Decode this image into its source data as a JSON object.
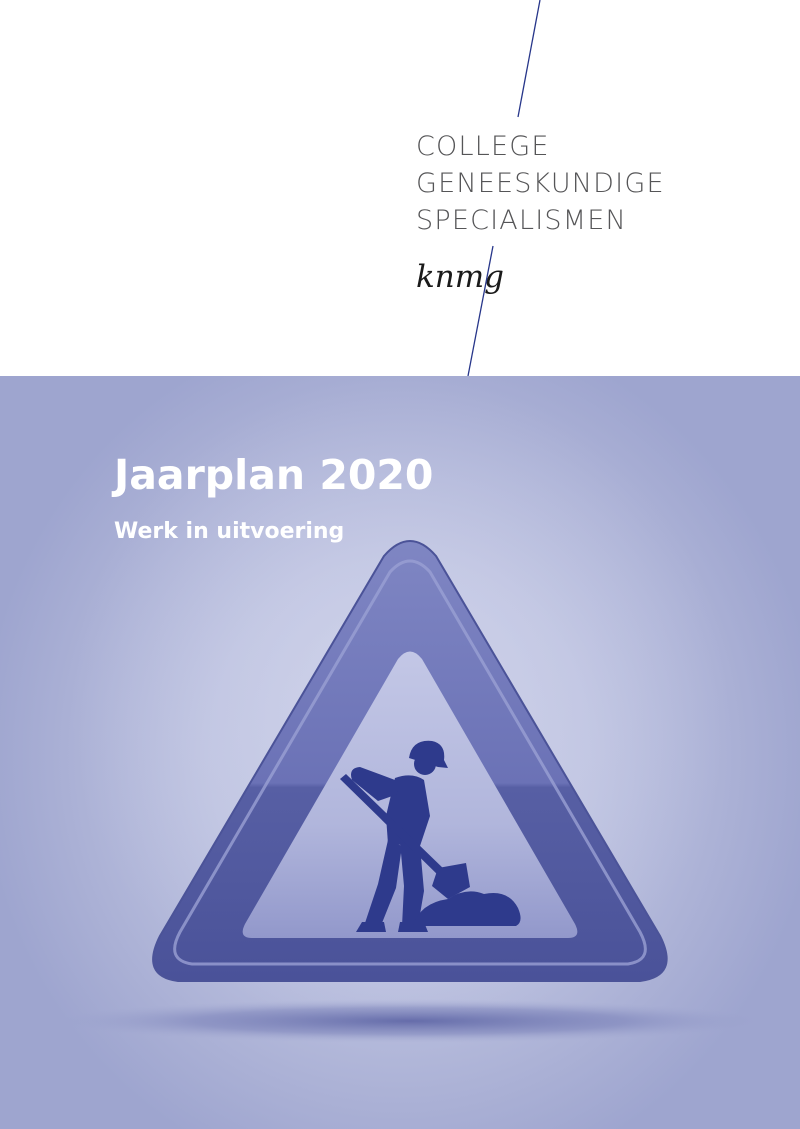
{
  "header": {
    "org_name_lines": [
      "COLLEGE",
      "GENEESKUNDIGE",
      "SPECIALISMEN"
    ],
    "logo_text": "knmg"
  },
  "cover": {
    "title": "Jaarplan 2020",
    "subtitle": "Werk in uitvoering"
  },
  "colors": {
    "background_blue": "#bfc4e1",
    "sign_frame": "#5a62a6",
    "sign_inner": "#a3a9d4",
    "worker": "#2e3a8c",
    "divider_line": "#27368a",
    "title_text": "#ffffff"
  },
  "illustration": {
    "icon": "road-works-warning-sign-icon"
  }
}
